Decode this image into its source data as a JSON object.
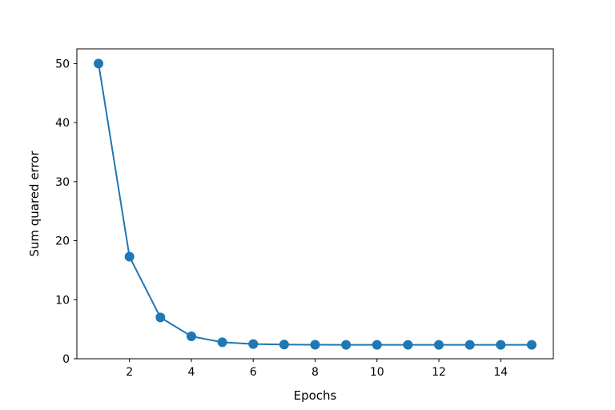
{
  "chart_data": {
    "type": "line",
    "title": "",
    "xlabel": "Epochs",
    "ylabel": "Sum quared error",
    "xlim": [
      0.3,
      15.7
    ],
    "ylim": [
      0,
      52.5
    ],
    "xticks": [
      2,
      4,
      6,
      8,
      10,
      12,
      14
    ],
    "yticks": [
      0,
      10,
      20,
      30,
      40,
      50
    ],
    "grid": false,
    "legend": "none",
    "series": [
      {
        "color": "#1f77b4",
        "marker": "circle",
        "x": [
          1,
          2,
          3,
          4,
          5,
          6,
          7,
          8,
          9,
          10,
          11,
          12,
          13,
          14,
          15
        ],
        "y": [
          50.0,
          17.3,
          7.0,
          3.8,
          2.8,
          2.5,
          2.4,
          2.37,
          2.36,
          2.35,
          2.35,
          2.35,
          2.35,
          2.35,
          2.35
        ]
      }
    ]
  }
}
